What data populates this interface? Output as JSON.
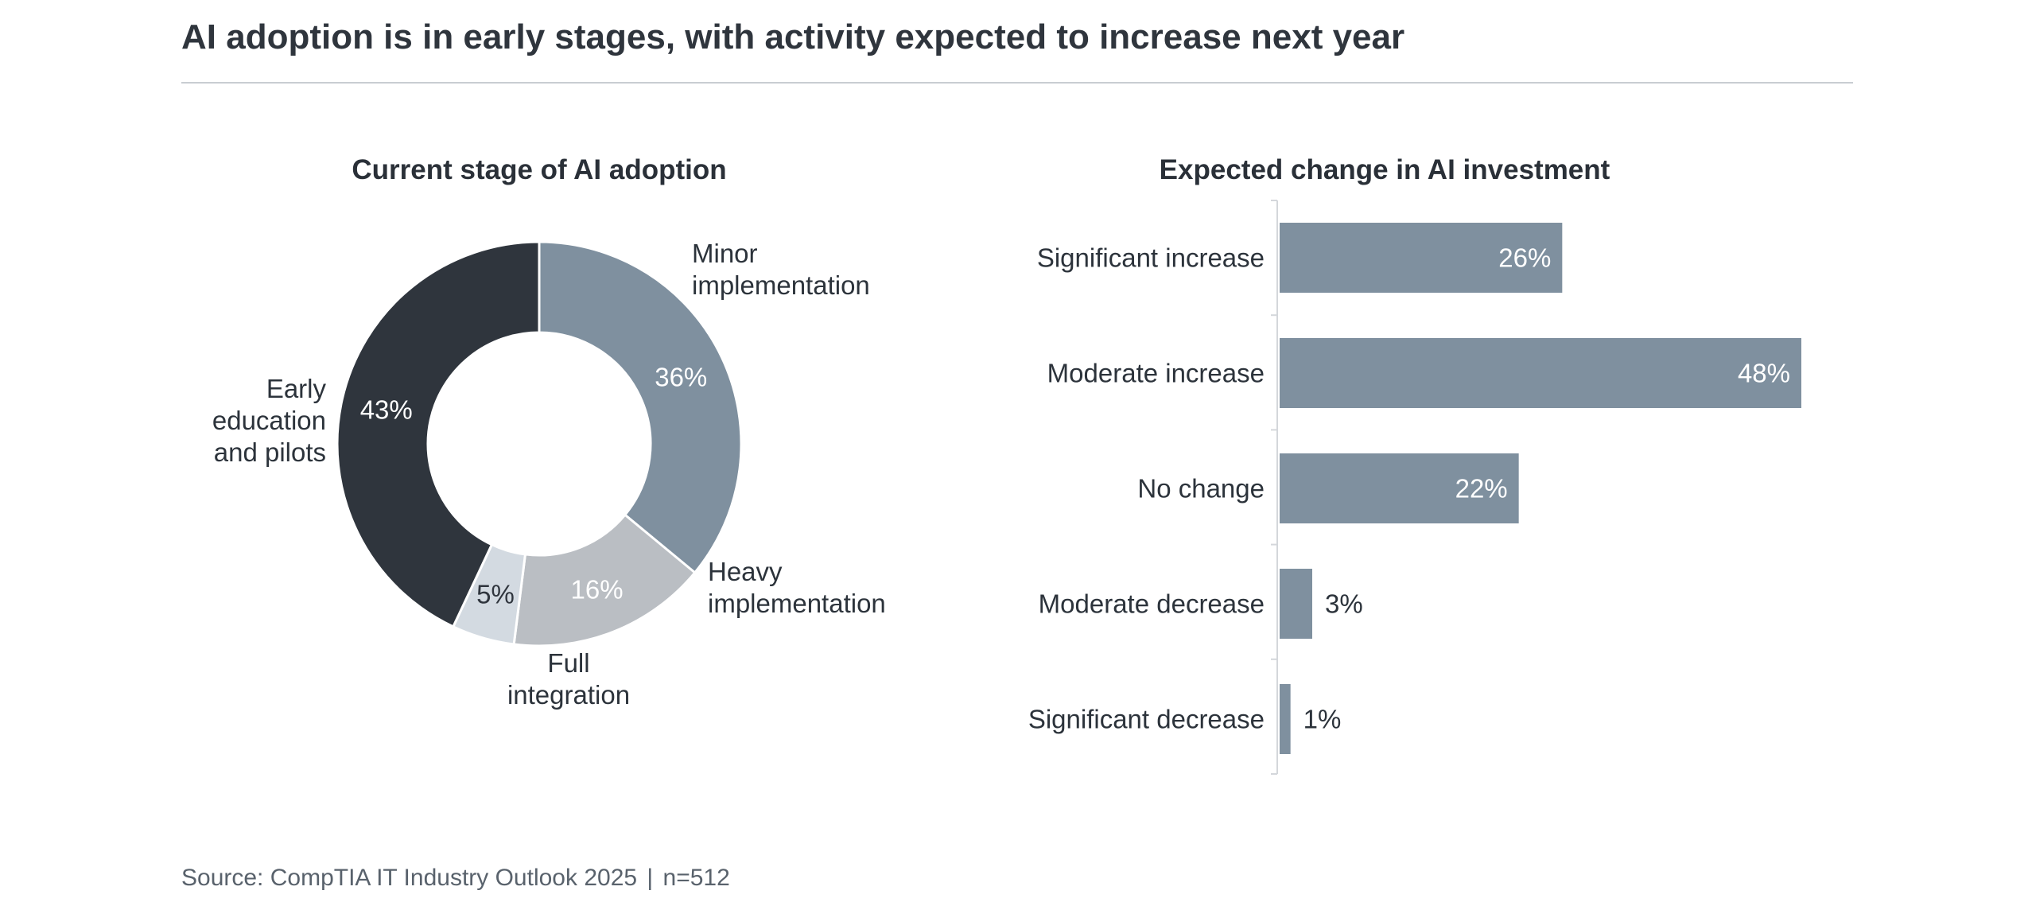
{
  "header": {
    "title": "AI adoption is in early stages, with activity expected to increase next year"
  },
  "footer": {
    "source_label": "Source: CompTIA IT Industry Outlook 2025",
    "sample": "n=512"
  },
  "colors": {
    "dark": "#2f353d",
    "slate": "#7f909f",
    "light_gray": "#babec3",
    "pale": "#d3dae1",
    "bar": "#7f909f",
    "axis": "#d4d7db"
  },
  "chart_data": [
    {
      "type": "pie",
      "variant": "donut",
      "title": "Current stage of AI adoption",
      "unit": "%",
      "slices": [
        {
          "label": "Minor implementation",
          "label_lines": [
            "Minor",
            "implementation"
          ],
          "value": 36,
          "color": "#7f909f",
          "value_color": "#ffffff"
        },
        {
          "label": "Heavy implementation",
          "label_lines": [
            "Heavy",
            "implementation"
          ],
          "value": 16,
          "color": "#babec3",
          "value_color": "#ffffff"
        },
        {
          "label": "Full integration",
          "label_lines": [
            "Full",
            "integration"
          ],
          "value": 5,
          "color": "#d3dae1",
          "value_color": "#2f353d"
        },
        {
          "label": "Early education and pilots",
          "label_lines": [
            "Early",
            "education",
            "and pilots"
          ],
          "value": 43,
          "color": "#2f353d",
          "value_color": "#ffffff"
        }
      ]
    },
    {
      "type": "bar",
      "orientation": "horizontal",
      "title": "Expected change in AI investment",
      "unit": "%",
      "xlim": [
        0,
        48
      ],
      "categories": [
        "Significant increase",
        "Moderate increase",
        "No change",
        "Moderate decrease",
        "Significant decrease"
      ],
      "values": [
        26,
        48,
        22,
        3,
        1
      ]
    }
  ]
}
